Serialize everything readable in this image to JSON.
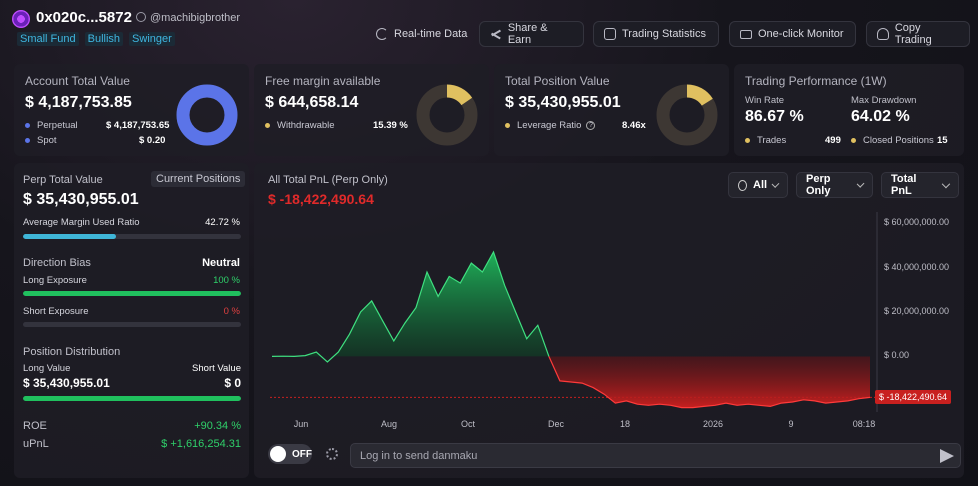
{
  "profile": {
    "address": "0x020c...5872",
    "handle": "@machibigbrother",
    "tags": [
      "Small Fund",
      "Bullish",
      "Swinger"
    ]
  },
  "header_buttons": [
    {
      "label": "Real-time Data",
      "icon": "refresh-icon"
    },
    {
      "label": "Share & Earn",
      "icon": "share-icon"
    },
    {
      "label": "Trading Statistics",
      "icon": "stats-icon"
    },
    {
      "label": "One-click Monitor",
      "icon": "monitor-icon"
    },
    {
      "label": "Copy Trading",
      "icon": "copy-trading-icon"
    }
  ],
  "cards": {
    "account": {
      "title": "Account Total Value",
      "value": "$ 4,187,753.85",
      "rows": [
        {
          "label": "Perpetual",
          "value": "$ 4,187,753.65",
          "color": "#5b74e8"
        },
        {
          "label": "Spot",
          "value": "$ 0.20",
          "color": "#5b74e8"
        }
      ],
      "share": 1.0
    },
    "margin": {
      "title": "Free margin available",
      "value": "$ 644,658.14",
      "rows": [
        {
          "label": "Withdrawable",
          "value": "15.39 %",
          "color": "#e0c060"
        }
      ],
      "share": 0.1539
    },
    "position": {
      "title": "Total Position Value",
      "value": "$ 35,430,955.01",
      "rows": [
        {
          "label": "Leverage Ratio",
          "value": "8.46x",
          "color": "#e0c060"
        }
      ],
      "share": 0.16
    },
    "performance": {
      "title": "Trading Performance (1W)",
      "win_rate_label": "Win Rate",
      "win_rate": "86.67 %",
      "drawdown_label": "Max Drawdown",
      "drawdown": "64.02 %",
      "trades_label": "Trades",
      "trades": "499",
      "closed_label": "Closed Positions",
      "closed": "15"
    }
  },
  "left_panel": {
    "perp_title": "Perp Total Value",
    "chip": "Current Positions",
    "perp_value": "$ 35,430,955.01",
    "margin_ratio_label": "Average Margin Used Ratio",
    "margin_ratio": "42.72 %",
    "margin_ratio_fill": 0.4272,
    "direction_label": "Direction Bias",
    "direction": "Neutral",
    "long_label": "Long Exposure",
    "long_value": "100 %",
    "long_fill": 1.0,
    "short_label": "Short Exposure",
    "short_value": "0 %",
    "short_fill": 0.0,
    "distribution_label": "Position Distribution",
    "long_value_label": "Long Value",
    "short_value_label": "Short Value",
    "long_dist": "$ 35,430,955.01",
    "short_dist": "$ 0",
    "dist_fill": 1.0,
    "roe_label": "ROE",
    "roe": "+90.34 %",
    "upnl_label": "uPnL",
    "upnl": "$ +1,616,254.31"
  },
  "chart_panel": {
    "title": "All Total PnL (Perp Only)",
    "value": "$ -18,422,490.64",
    "filters": [
      "All",
      "Perp Only",
      "Total PnL"
    ]
  },
  "chart_data": {
    "type": "area",
    "title": "All Total PnL (Perp Only)",
    "y_ticks": [
      "$ 60,000,000.00",
      "$ 40,000,000.00",
      "$ 20,000,000.00",
      "$ 0.00"
    ],
    "y_tick_values": [
      60000000,
      40000000,
      20000000,
      0
    ],
    "ylim": [
      -25000000,
      65000000
    ],
    "x_ticks": [
      "Jun",
      "Aug",
      "Oct",
      "Dec",
      "18",
      "2026",
      "9",
      "08:18"
    ],
    "current_label": "$ -18,422,490.64",
    "current_value": -18422490.64,
    "positive_color": "#20b45a",
    "negative_color": "#c8201f",
    "points": [
      [
        0,
        0
      ],
      [
        1,
        100000
      ],
      [
        2,
        0
      ],
      [
        3,
        400000
      ],
      [
        4,
        2000000
      ],
      [
        5,
        -2500000
      ],
      [
        6,
        2000000
      ],
      [
        7,
        10000000
      ],
      [
        8,
        20000000
      ],
      [
        9,
        25000000
      ],
      [
        10,
        16000000
      ],
      [
        11,
        7000000
      ],
      [
        12,
        15000000
      ],
      [
        13,
        22000000
      ],
      [
        14,
        38000000
      ],
      [
        15,
        27000000
      ],
      [
        16,
        36000000
      ],
      [
        17,
        33000000
      ],
      [
        18,
        42000000
      ],
      [
        19,
        38000000
      ],
      [
        20,
        47000000
      ],
      [
        21,
        32000000
      ],
      [
        22,
        20000000
      ],
      [
        23,
        8000000
      ],
      [
        24,
        14000000
      ],
      [
        25,
        0
      ],
      [
        26,
        -11000000
      ],
      [
        27,
        -11500000
      ],
      [
        28,
        -12000000
      ],
      [
        29,
        -14000000
      ],
      [
        30,
        -17000000
      ],
      [
        31,
        -21000000
      ],
      [
        32,
        -20000000
      ],
      [
        33,
        -21500000
      ],
      [
        34,
        -22000000
      ],
      [
        35,
        -21500000
      ],
      [
        36,
        -22000000
      ],
      [
        37,
        -23000000
      ],
      [
        38,
        -23000000
      ],
      [
        39,
        -22500000
      ],
      [
        40,
        -22000000
      ],
      [
        41,
        -21000000
      ],
      [
        42,
        -22000000
      ],
      [
        43,
        -21500000
      ],
      [
        44,
        -22000000
      ],
      [
        45,
        -22500000
      ],
      [
        46,
        -21000000
      ],
      [
        47,
        -20500000
      ],
      [
        48,
        -19500000
      ],
      [
        49,
        -20000000
      ],
      [
        50,
        -21000000
      ],
      [
        51,
        -20500000
      ],
      [
        52,
        -20000000
      ],
      [
        53,
        -19000000
      ],
      [
        54,
        -18422490.64
      ]
    ]
  },
  "bottom": {
    "toggle_label": "OFF",
    "danmaku_placeholder": "Log in to send danmaku"
  }
}
